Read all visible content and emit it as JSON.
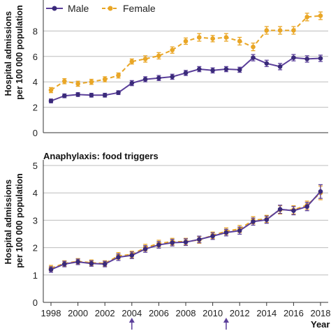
{
  "colors": {
    "male": "#5b3f9a",
    "female": "#e9a626",
    "grid": "#bdbdbd",
    "axis": "#333333",
    "marker": "#3a2a7a"
  },
  "chart_data": [
    {
      "type": "line",
      "title": "",
      "xlabel": "Year",
      "ylabel": "Hospital admissions per 100 000 population",
      "ylim": [
        0,
        10
      ],
      "yticks": [
        0,
        2,
        4,
        6,
        8
      ],
      "legend": "top-left",
      "grid": true,
      "x": [
        1998,
        1999,
        2000,
        2001,
        2002,
        2003,
        2004,
        2005,
        2006,
        2007,
        2008,
        2009,
        2010,
        2011,
        2012,
        2013,
        2014,
        2015,
        2016,
        2017,
        2018
      ],
      "series": [
        {
          "name": "Male",
          "color_key": "male",
          "style": "solid",
          "values": [
            2.5,
            2.9,
            3.0,
            2.95,
            2.95,
            3.15,
            3.9,
            4.2,
            4.3,
            4.4,
            4.7,
            5.0,
            4.9,
            5.0,
            4.95,
            5.9,
            5.45,
            5.2,
            5.9,
            5.8,
            5.85
          ],
          "err": [
            0.15,
            0.15,
            0.15,
            0.15,
            0.15,
            0.15,
            0.2,
            0.2,
            0.2,
            0.2,
            0.2,
            0.2,
            0.2,
            0.2,
            0.2,
            0.25,
            0.25,
            0.25,
            0.25,
            0.25,
            0.25
          ]
        },
        {
          "name": "Female",
          "color_key": "female",
          "style": "dashed",
          "values": [
            3.35,
            4.05,
            3.85,
            4.0,
            4.2,
            4.5,
            5.6,
            5.8,
            6.05,
            6.5,
            7.2,
            7.5,
            7.4,
            7.5,
            7.2,
            6.75,
            8.05,
            8.05,
            8.05,
            9.1,
            9.2
          ],
          "err": [
            0.2,
            0.2,
            0.2,
            0.2,
            0.2,
            0.2,
            0.2,
            0.25,
            0.25,
            0.25,
            0.25,
            0.3,
            0.25,
            0.3,
            0.3,
            0.3,
            0.3,
            0.3,
            0.3,
            0.3,
            0.3
          ]
        }
      ]
    },
    {
      "type": "line",
      "title": "Anaphylaxis: food triggers",
      "xlabel": "Year",
      "ylabel": "Hospital admissions per 100 000 population",
      "ylim": [
        0,
        5
      ],
      "yticks": [
        0,
        1,
        2,
        3,
        4,
        5
      ],
      "xticks": [
        1998,
        2000,
        2002,
        2004,
        2006,
        2008,
        2010,
        2012,
        2014,
        2016,
        2018
      ],
      "grid": true,
      "markers_at": [
        2004,
        2011
      ],
      "x": [
        1998,
        1999,
        2000,
        2001,
        2002,
        2003,
        2004,
        2005,
        2006,
        2007,
        2008,
        2009,
        2010,
        2011,
        2012,
        2013,
        2014,
        2015,
        2016,
        2017,
        2018
      ],
      "series": [
        {
          "name": "Female",
          "color_key": "female",
          "style": "dashed",
          "values": [
            1.25,
            1.42,
            1.5,
            1.45,
            1.42,
            1.7,
            1.75,
            2.0,
            2.15,
            2.22,
            2.22,
            2.28,
            2.45,
            2.6,
            2.68,
            3.0,
            3.05,
            3.38,
            3.38,
            3.55,
            4.0
          ],
          "err": [
            0.1,
            0.1,
            0.1,
            0.1,
            0.1,
            0.12,
            0.12,
            0.12,
            0.12,
            0.12,
            0.12,
            0.12,
            0.12,
            0.12,
            0.13,
            0.13,
            0.13,
            0.15,
            0.15,
            0.15,
            0.25
          ]
        },
        {
          "name": "Male",
          "color_key": "male",
          "style": "solid",
          "values": [
            1.2,
            1.4,
            1.48,
            1.42,
            1.4,
            1.65,
            1.72,
            1.95,
            2.1,
            2.18,
            2.2,
            2.3,
            2.42,
            2.55,
            2.62,
            2.95,
            3.02,
            3.4,
            3.35,
            3.5,
            4.05
          ],
          "err": [
            0.1,
            0.1,
            0.1,
            0.1,
            0.1,
            0.12,
            0.12,
            0.12,
            0.12,
            0.12,
            0.12,
            0.12,
            0.12,
            0.12,
            0.13,
            0.13,
            0.13,
            0.15,
            0.15,
            0.15,
            0.25
          ]
        }
      ]
    }
  ]
}
